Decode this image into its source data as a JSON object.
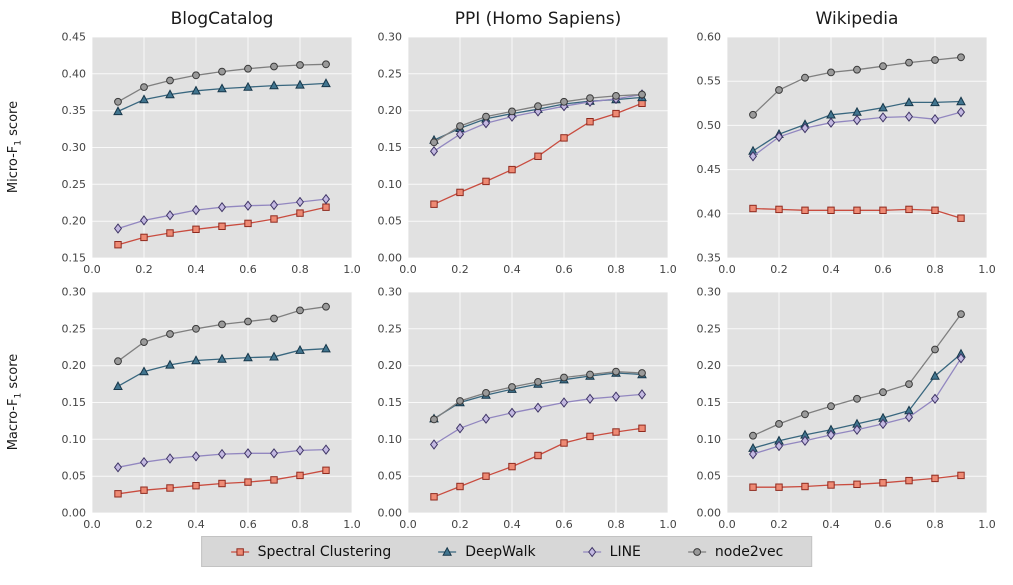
{
  "figure": {
    "row_labels": [
      {
        "prefix": "Micro-F",
        "sub": "1",
        "suffix": " score"
      },
      {
        "prefix": "Macro-F",
        "sub": "1",
        "suffix": " score"
      }
    ]
  },
  "legend": {
    "items": [
      {
        "label": "Spectral Clustering",
        "marker": "square"
      },
      {
        "label": "DeepWalk",
        "marker": "triangle"
      },
      {
        "label": "LINE",
        "marker": "diamond"
      },
      {
        "label": "node2vec",
        "marker": "circle"
      }
    ]
  },
  "series_styles": {
    "square": {
      "line": "#c94c3f",
      "fill": "#ee8a74",
      "stroke": "#8f2a1f"
    },
    "triangle": {
      "line": "#39677f",
      "fill": "#41758f",
      "stroke": "#17374a"
    },
    "diamond": {
      "line": "#9287c0",
      "fill": "#c3b9e1",
      "stroke": "#3f3566"
    },
    "circle": {
      "line": "#7f7f7f",
      "fill": "#9a9a9a",
      "stroke": "#3a3a3a"
    }
  },
  "plot_colors": {
    "plot_background": "#e1e1e1",
    "gridline": "#ffffff",
    "tick_text": "#444444"
  },
  "chart_data": [
    {
      "type": "line",
      "title": "BlogCatalog",
      "dataset": "BlogCatalog",
      "metric": "Micro-F1 score",
      "x": [
        0.1,
        0.2,
        0.3,
        0.4,
        0.5,
        0.6,
        0.7,
        0.8,
        0.9
      ],
      "xlim": [
        0.0,
        1.0
      ],
      "xticks": [
        0.0,
        0.2,
        0.4,
        0.6,
        0.8,
        1.0
      ],
      "ylim": [
        0.15,
        0.45
      ],
      "yticks": [
        0.15,
        0.2,
        0.25,
        0.3,
        0.35,
        0.4,
        0.45
      ],
      "series": [
        {
          "name": "Spectral Clustering",
          "marker": "square",
          "values": [
            0.168,
            0.178,
            0.184,
            0.189,
            0.193,
            0.197,
            0.203,
            0.211,
            0.219
          ]
        },
        {
          "name": "DeepWalk",
          "marker": "triangle",
          "values": [
            0.349,
            0.365,
            0.372,
            0.377,
            0.38,
            0.382,
            0.384,
            0.385,
            0.387
          ]
        },
        {
          "name": "LINE",
          "marker": "diamond",
          "values": [
            0.19,
            0.201,
            0.208,
            0.215,
            0.219,
            0.221,
            0.222,
            0.226,
            0.23
          ]
        },
        {
          "name": "node2vec",
          "marker": "circle",
          "values": [
            0.362,
            0.382,
            0.391,
            0.398,
            0.403,
            0.407,
            0.41,
            0.412,
            0.413
          ]
        }
      ]
    },
    {
      "type": "line",
      "title": "PPI (Homo Sapiens)",
      "dataset": "PPI (Homo Sapiens)",
      "metric": "Micro-F1 score",
      "x": [
        0.1,
        0.2,
        0.3,
        0.4,
        0.5,
        0.6,
        0.7,
        0.8,
        0.9
      ],
      "xlim": [
        0.0,
        1.0
      ],
      "xticks": [
        0.0,
        0.2,
        0.4,
        0.6,
        0.8,
        1.0
      ],
      "ylim": [
        0.0,
        0.3
      ],
      "yticks": [
        0.0,
        0.05,
        0.1,
        0.15,
        0.2,
        0.25,
        0.3
      ],
      "series": [
        {
          "name": "Spectral Clustering",
          "marker": "square",
          "values": [
            0.073,
            0.089,
            0.104,
            0.12,
            0.138,
            0.163,
            0.185,
            0.196,
            0.21
          ]
        },
        {
          "name": "DeepWalk",
          "marker": "triangle",
          "values": [
            0.16,
            0.176,
            0.189,
            0.196,
            0.202,
            0.209,
            0.213,
            0.215,
            0.218
          ]
        },
        {
          "name": "LINE",
          "marker": "diamond",
          "values": [
            0.145,
            0.168,
            0.183,
            0.192,
            0.199,
            0.206,
            0.212,
            0.216,
            0.222
          ]
        },
        {
          "name": "node2vec",
          "marker": "circle",
          "values": [
            0.157,
            0.179,
            0.192,
            0.199,
            0.206,
            0.212,
            0.217,
            0.22,
            0.222
          ]
        }
      ]
    },
    {
      "type": "line",
      "title": "Wikipedia",
      "dataset": "Wikipedia",
      "metric": "Micro-F1 score",
      "x": [
        0.1,
        0.2,
        0.3,
        0.4,
        0.5,
        0.6,
        0.7,
        0.8,
        0.9
      ],
      "xlim": [
        0.0,
        1.0
      ],
      "xticks": [
        0.0,
        0.2,
        0.4,
        0.6,
        0.8,
        1.0
      ],
      "ylim": [
        0.35,
        0.6
      ],
      "yticks": [
        0.35,
        0.4,
        0.45,
        0.5,
        0.55,
        0.6
      ],
      "series": [
        {
          "name": "Spectral Clustering",
          "marker": "square",
          "values": [
            0.406,
            0.405,
            0.404,
            0.404,
            0.404,
            0.404,
            0.405,
            0.404,
            0.395
          ]
        },
        {
          "name": "DeepWalk",
          "marker": "triangle",
          "values": [
            0.471,
            0.49,
            0.501,
            0.512,
            0.515,
            0.52,
            0.526,
            0.526,
            0.527
          ]
        },
        {
          "name": "LINE",
          "marker": "diamond",
          "values": [
            0.465,
            0.487,
            0.497,
            0.503,
            0.506,
            0.509,
            0.51,
            0.507,
            0.515
          ]
        },
        {
          "name": "node2vec",
          "marker": "circle",
          "values": [
            0.512,
            0.54,
            0.554,
            0.56,
            0.563,
            0.567,
            0.571,
            0.574,
            0.577
          ]
        }
      ]
    },
    {
      "type": "line",
      "title": "",
      "dataset": "BlogCatalog",
      "metric": "Macro-F1 score",
      "x": [
        0.1,
        0.2,
        0.3,
        0.4,
        0.5,
        0.6,
        0.7,
        0.8,
        0.9
      ],
      "xlim": [
        0.0,
        1.0
      ],
      "xticks": [
        0.0,
        0.2,
        0.4,
        0.6,
        0.8,
        1.0
      ],
      "ylim": [
        0.0,
        0.3
      ],
      "yticks": [
        0.0,
        0.05,
        0.1,
        0.15,
        0.2,
        0.25,
        0.3
      ],
      "series": [
        {
          "name": "Spectral Clustering",
          "marker": "square",
          "values": [
            0.026,
            0.031,
            0.034,
            0.037,
            0.04,
            0.042,
            0.045,
            0.051,
            0.058
          ]
        },
        {
          "name": "DeepWalk",
          "marker": "triangle",
          "values": [
            0.172,
            0.192,
            0.201,
            0.207,
            0.209,
            0.211,
            0.212,
            0.221,
            0.223
          ]
        },
        {
          "name": "LINE",
          "marker": "diamond",
          "values": [
            0.062,
            0.069,
            0.074,
            0.077,
            0.08,
            0.081,
            0.081,
            0.085,
            0.086
          ]
        },
        {
          "name": "node2vec",
          "marker": "circle",
          "values": [
            0.206,
            0.232,
            0.243,
            0.25,
            0.256,
            0.26,
            0.264,
            0.275,
            0.28
          ]
        }
      ]
    },
    {
      "type": "line",
      "title": "",
      "dataset": "PPI (Homo Sapiens)",
      "metric": "Macro-F1 score",
      "x": [
        0.1,
        0.2,
        0.3,
        0.4,
        0.5,
        0.6,
        0.7,
        0.8,
        0.9
      ],
      "xlim": [
        0.0,
        1.0
      ],
      "xticks": [
        0.0,
        0.2,
        0.4,
        0.6,
        0.8,
        1.0
      ],
      "ylim": [
        0.0,
        0.3
      ],
      "yticks": [
        0.0,
        0.05,
        0.1,
        0.15,
        0.2,
        0.25,
        0.3
      ],
      "series": [
        {
          "name": "Spectral Clustering",
          "marker": "square",
          "values": [
            0.022,
            0.036,
            0.05,
            0.063,
            0.078,
            0.095,
            0.104,
            0.11,
            0.115
          ]
        },
        {
          "name": "DeepWalk",
          "marker": "triangle",
          "values": [
            0.128,
            0.15,
            0.16,
            0.168,
            0.175,
            0.181,
            0.186,
            0.19,
            0.188
          ]
        },
        {
          "name": "LINE",
          "marker": "diamond",
          "values": [
            0.093,
            0.115,
            0.128,
            0.136,
            0.143,
            0.15,
            0.155,
            0.158,
            0.161
          ]
        },
        {
          "name": "node2vec",
          "marker": "circle",
          "values": [
            0.127,
            0.152,
            0.163,
            0.171,
            0.178,
            0.184,
            0.188,
            0.192,
            0.19
          ]
        }
      ]
    },
    {
      "type": "line",
      "title": "",
      "dataset": "Wikipedia",
      "metric": "Macro-F1 score",
      "x": [
        0.1,
        0.2,
        0.3,
        0.4,
        0.5,
        0.6,
        0.7,
        0.8,
        0.9
      ],
      "xlim": [
        0.0,
        1.0
      ],
      "xticks": [
        0.0,
        0.2,
        0.4,
        0.6,
        0.8,
        1.0
      ],
      "ylim": [
        0.0,
        0.3
      ],
      "yticks": [
        0.0,
        0.05,
        0.1,
        0.15,
        0.2,
        0.25,
        0.3
      ],
      "series": [
        {
          "name": "Spectral Clustering",
          "marker": "square",
          "values": [
            0.035,
            0.035,
            0.036,
            0.038,
            0.039,
            0.041,
            0.044,
            0.047,
            0.051
          ]
        },
        {
          "name": "DeepWalk",
          "marker": "triangle",
          "values": [
            0.088,
            0.098,
            0.106,
            0.113,
            0.121,
            0.129,
            0.139,
            0.186,
            0.216
          ]
        },
        {
          "name": "LINE",
          "marker": "diamond",
          "values": [
            0.08,
            0.091,
            0.098,
            0.106,
            0.113,
            0.121,
            0.13,
            0.155,
            0.21
          ]
        },
        {
          "name": "node2vec",
          "marker": "circle",
          "values": [
            0.105,
            0.121,
            0.134,
            0.145,
            0.155,
            0.164,
            0.175,
            0.222,
            0.27
          ]
        }
      ]
    }
  ]
}
